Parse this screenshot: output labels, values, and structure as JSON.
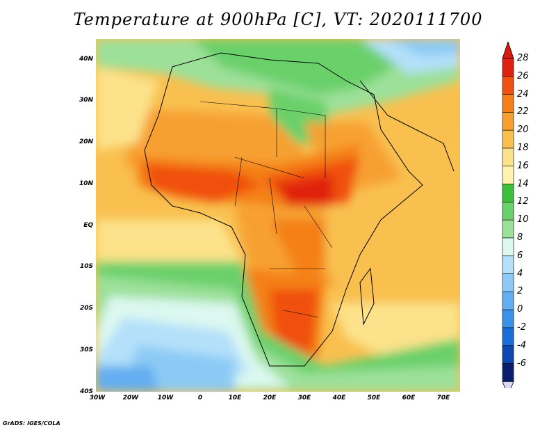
{
  "title": "Temperature at 900hPa [C], VT: 2020111700",
  "credit": "GrADS: IGES/COLA",
  "map": {
    "lon_range": [
      -30,
      75
    ],
    "lat_range": [
      -40,
      45
    ],
    "lat_ticks": [
      "40N",
      "30N",
      "20N",
      "10N",
      "EQ",
      "10S",
      "20S",
      "30S",
      "40S"
    ],
    "lon_ticks": [
      "30W",
      "20W",
      "10W",
      "0",
      "10E",
      "20E",
      "30E",
      "40E",
      "50E",
      "60E",
      "70E"
    ]
  },
  "colorbar": {
    "labels": [
      "28",
      "26",
      "24",
      "22",
      "20",
      "18",
      "16",
      "14",
      "12",
      "10",
      "8",
      "6",
      "4",
      "2",
      "0",
      "-2",
      "-4",
      "-6"
    ],
    "colors": [
      "#e02010",
      "#f05010",
      "#f48018",
      "#f7a030",
      "#f9c050",
      "#fce28a",
      "#fef4b0",
      "#3cc03c",
      "#6ad06a",
      "#9ce09a",
      "#dcf8f0",
      "#b4e0fa",
      "#8ccaf5",
      "#62aef0",
      "#3a92e8",
      "#1a6ed8",
      "#0c48b0",
      "#0a1e6e"
    ],
    "top_arrow": "#d81a10",
    "bottom_arrow": "#dcd8f8"
  }
}
